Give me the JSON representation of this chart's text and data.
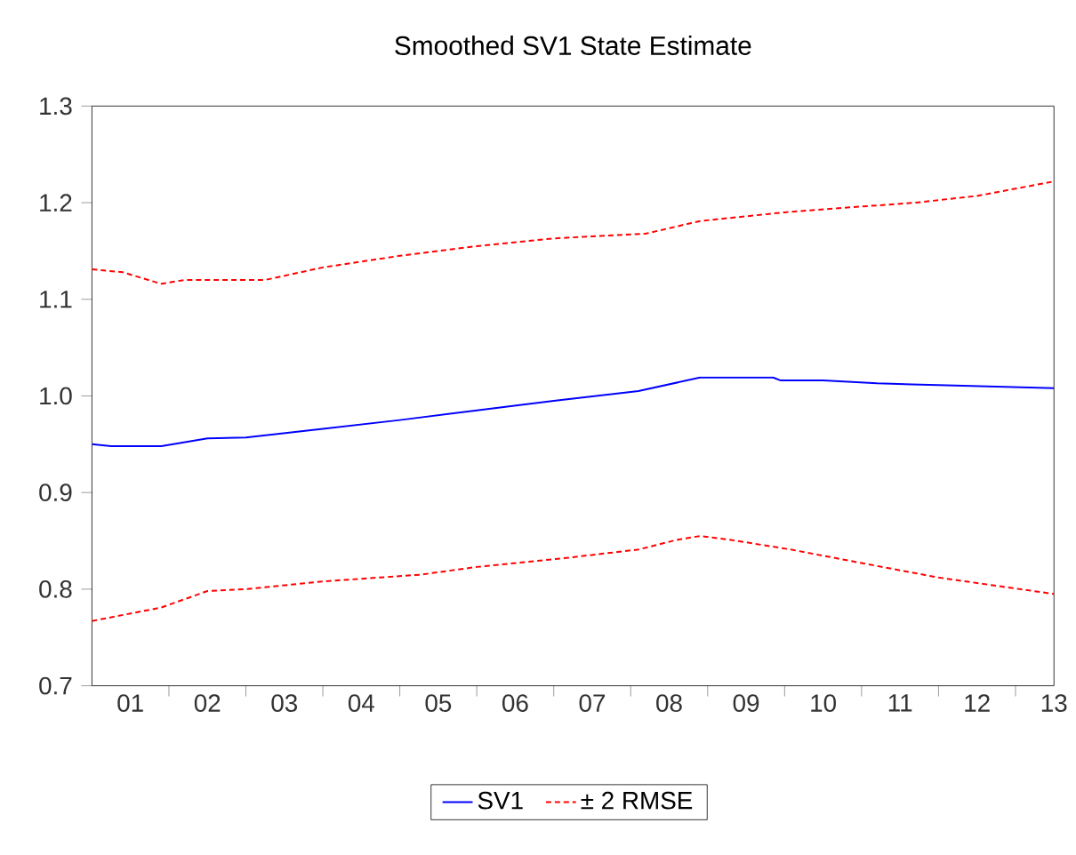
{
  "chart_data": {
    "type": "line",
    "title": "Smoothed SV1 State Estimate",
    "x": [
      0.5,
      0.75,
      1.4,
      2.0,
      2.5,
      3.5,
      4.5,
      5.5,
      6.5,
      7.6,
      8.4,
      9.35,
      9.45,
      10.0,
      10.7,
      11.6,
      13.0
    ],
    "series": [
      {
        "name": "SV1",
        "color": "#0000ff",
        "line_style": "solid",
        "values": [
          0.95,
          0.948,
          0.948,
          0.956,
          0.957,
          0.966,
          0.975,
          0.985,
          0.995,
          1.005,
          1.019,
          1.019,
          1.016,
          1.016,
          1.013,
          1.011,
          1.008
        ]
      },
      {
        "name": "± 2 RMSE",
        "color": "#ff0000",
        "line_style": "dashed",
        "x": [
          0.5,
          0.9,
          1.4,
          1.7,
          2.75,
          3.5,
          4.5,
          5.5,
          6.5,
          7.7,
          8.4,
          9.5,
          10.5,
          11.2,
          12.0,
          13.0
        ],
        "values": [
          1.131,
          1.128,
          1.116,
          1.12,
          1.12,
          1.133,
          1.145,
          1.155,
          1.163,
          1.168,
          1.181,
          1.19,
          1.196,
          1.2,
          1.207,
          1.222
        ]
      },
      {
        "color": "#ff0000",
        "line_style": "dashed",
        "x": [
          0.5,
          1.4,
          2.0,
          2.5,
          3.5,
          4.77,
          5.5,
          6.63,
          7.6,
          8.1,
          8.4,
          8.8,
          9.58,
          10.5,
          11.5,
          13.0
        ],
        "values": [
          0.767,
          0.781,
          0.798,
          0.8,
          0.808,
          0.815,
          0.823,
          0.832,
          0.841,
          0.851,
          0.855,
          0.851,
          0.841,
          0.827,
          0.812,
          0.795
        ]
      }
    ],
    "xlim": [
      0.5,
      13.0
    ],
    "xticks": [
      {
        "value": 1,
        "label": "01"
      },
      {
        "value": 1.5,
        "label": null
      },
      {
        "value": 2,
        "label": "02"
      },
      {
        "value": 2.5,
        "label": null
      },
      {
        "value": 3,
        "label": "03"
      },
      {
        "value": 3.5,
        "label": null
      },
      {
        "value": 4,
        "label": "04"
      },
      {
        "value": 4.5,
        "label": null
      },
      {
        "value": 5,
        "label": "05"
      },
      {
        "value": 5.5,
        "label": null
      },
      {
        "value": 6,
        "label": "06"
      },
      {
        "value": 6.5,
        "label": null
      },
      {
        "value": 7,
        "label": "07"
      },
      {
        "value": 7.5,
        "label": null
      },
      {
        "value": 8,
        "label": "08"
      },
      {
        "value": 8.5,
        "label": null
      },
      {
        "value": 9,
        "label": "09"
      },
      {
        "value": 9.5,
        "label": null
      },
      {
        "value": 10,
        "label": "10"
      },
      {
        "value": 10.5,
        "label": null
      },
      {
        "value": 11,
        "label": "11"
      },
      {
        "value": 11.5,
        "label": null
      },
      {
        "value": 12,
        "label": "12"
      },
      {
        "value": 12.5,
        "label": null
      },
      {
        "value": 13,
        "label": "13"
      }
    ],
    "ylim": [
      0.7,
      1.3
    ],
    "yticks": [
      {
        "value": 0.7,
        "label": "0.7"
      },
      {
        "value": 0.8,
        "label": "0.8"
      },
      {
        "value": 0.9,
        "label": "0.9"
      },
      {
        "value": 1.0,
        "label": "1.0"
      },
      {
        "value": 1.1,
        "label": "1.1"
      },
      {
        "value": 1.2,
        "label": "1.2"
      },
      {
        "value": 1.3,
        "label": "1.3"
      }
    ],
    "grid": false,
    "legend": "bottom",
    "marker": "none"
  }
}
